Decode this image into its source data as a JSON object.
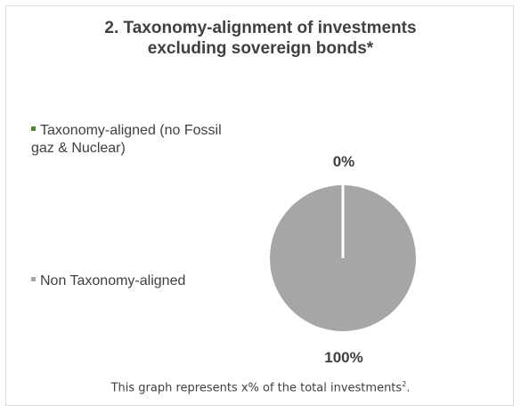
{
  "title_line1": "2. Taxonomy-alignment of investments",
  "title_line2": "excluding sovereign bonds*",
  "footer_text": "This graph represents x% of the total investments",
  "footer_sup": "2",
  "footer_end": ".",
  "chart_data": {
    "type": "pie",
    "title": "2. Taxonomy-alignment of investments excluding sovereign bonds*",
    "slices": [
      {
        "name": "Taxonomy-aligned (no Fossil gaz & Nuclear)",
        "value": 0,
        "label": "0%",
        "color": "#548235"
      },
      {
        "name": "Non Taxonomy-aligned",
        "value": 100,
        "label": "100%",
        "color": "#a6a6a6"
      }
    ],
    "legend_position": "left"
  }
}
